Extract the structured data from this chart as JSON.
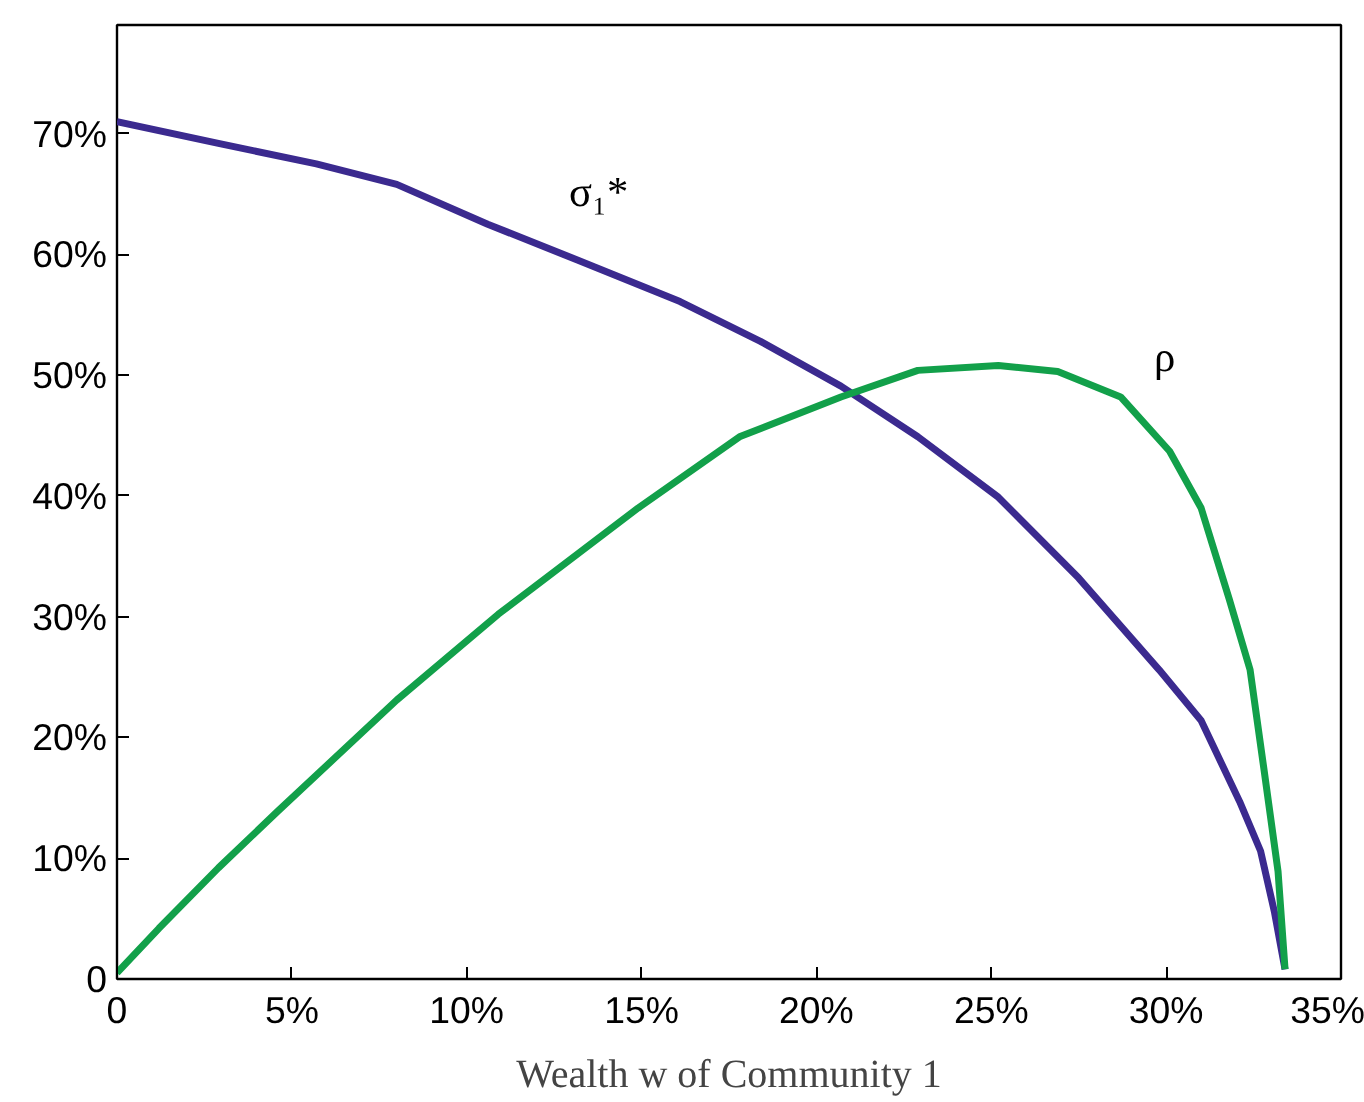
{
  "chart_data": {
    "type": "line",
    "xlabel": "Wealth w of Community 1",
    "xlim": [
      0,
      35
    ],
    "ylim": [
      0,
      79
    ],
    "xticks": [
      {
        "value": 0,
        "label": "0"
      },
      {
        "value": 5,
        "label": "5%"
      },
      {
        "value": 10,
        "label": "10%"
      },
      {
        "value": 15,
        "label": "15%"
      },
      {
        "value": 20,
        "label": "20%"
      },
      {
        "value": 25,
        "label": "25%"
      },
      {
        "value": 30,
        "label": "30%"
      },
      {
        "value": 35,
        "label": "35%"
      }
    ],
    "yticks": [
      {
        "value": 0,
        "label": "0"
      },
      {
        "value": 10,
        "label": "10%"
      },
      {
        "value": 20,
        "label": "20%"
      },
      {
        "value": 30,
        "label": "30%"
      },
      {
        "value": 40,
        "label": "40%"
      },
      {
        "value": 50,
        "label": "50%"
      },
      {
        "value": 60,
        "label": "60%"
      },
      {
        "value": 70,
        "label": "70%"
      }
    ],
    "grid": false,
    "line_style": "solid",
    "series": [
      {
        "name": "σ₁*",
        "color": "#3b2a8f",
        "x": [
          0,
          2.9,
          5.7,
          8.0,
          10.6,
          13.2,
          16.1,
          18.4,
          20.7,
          22.9,
          25.2,
          27.5,
          29.8,
          31.0,
          32.1,
          32.7,
          33.1,
          33.4
        ],
        "values": [
          71.0,
          69.2,
          67.5,
          65.8,
          62.5,
          59.5,
          56.1,
          52.8,
          49.1,
          44.9,
          39.9,
          33.2,
          25.6,
          21.4,
          14.7,
          10.6,
          5.5,
          0.8
        ]
      },
      {
        "name": "ρ",
        "color": "#12a04a",
        "x": [
          0,
          1.2,
          2.9,
          4.6,
          8.0,
          10.9,
          14.9,
          17.8,
          20.7,
          22.9,
          25.2,
          26.9,
          28.7,
          30.1,
          31.0,
          31.8,
          32.4,
          32.8,
          33.2,
          33.4
        ],
        "values": [
          0.5,
          4.2,
          9.2,
          13.9,
          23.1,
          30.2,
          39.0,
          44.9,
          48.2,
          50.4,
          50.8,
          50.3,
          48.2,
          43.7,
          39.0,
          31.5,
          25.6,
          17.3,
          8.9,
          0.8
        ]
      }
    ]
  }
}
